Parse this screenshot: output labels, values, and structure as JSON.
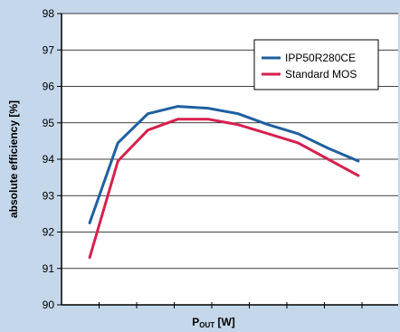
{
  "chart_data": {
    "type": "line",
    "title": "",
    "ylabel": "absolute efficiency [%]",
    "xlabel_main": "P",
    "xlabel_sub": "OUT",
    "xlabel_unit": " [W]",
    "ylim": [
      90,
      98
    ],
    "yticks": [
      90,
      91,
      92,
      93,
      94,
      95,
      96,
      97,
      98
    ],
    "x_positions": 8,
    "grid": "horizontal",
    "legend_position": "top-right",
    "series": [
      {
        "name": "IPP50R280CE",
        "color": "#1f5fa0",
        "points": [
          [
            0.75,
            92.25
          ],
          [
            1.5,
            94.45
          ],
          [
            2.3,
            95.25
          ],
          [
            3.1,
            95.45
          ],
          [
            3.9,
            95.4
          ],
          [
            4.7,
            95.25
          ],
          [
            5.5,
            94.95
          ],
          [
            6.3,
            94.7
          ],
          [
            7.1,
            94.3
          ],
          [
            7.9,
            93.95
          ]
        ]
      },
      {
        "name": "Standard MOS",
        "color": "#d6214f",
        "points": [
          [
            0.75,
            91.3
          ],
          [
            1.5,
            93.95
          ],
          [
            2.3,
            94.8
          ],
          [
            3.1,
            95.1
          ],
          [
            3.9,
            95.1
          ],
          [
            4.7,
            94.95
          ],
          [
            5.5,
            94.7
          ],
          [
            6.3,
            94.45
          ],
          [
            7.1,
            94.0
          ],
          [
            7.9,
            93.55
          ]
        ]
      }
    ]
  }
}
